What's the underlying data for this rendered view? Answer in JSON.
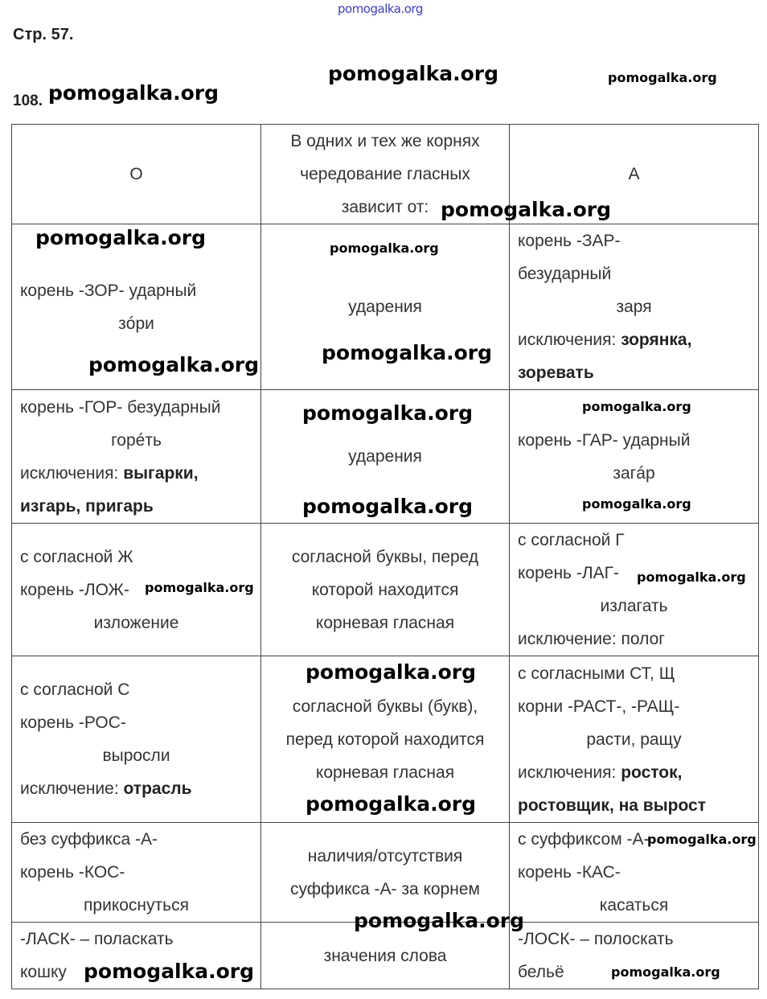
{
  "site_link": "pomogalka.org",
  "page_label": "Стр. 57.",
  "exercise_number": "108.",
  "watermark": "pomogalka.org",
  "table": {
    "rows": [
      {
        "cells": [
          {
            "lines": [
              {
                "text": "О",
                "align": "c"
              }
            ]
          },
          {
            "lines": [
              {
                "text": "В одних и тех же корнях",
                "align": "c"
              },
              {
                "text": "чередование гласных",
                "align": "c"
              },
              {
                "text": "зависит от:",
                "align": "c"
              }
            ]
          },
          {
            "lines": [
              {
                "text": "А",
                "align": "c"
              }
            ]
          }
        ]
      },
      {
        "cells": [
          {
            "lines": [
              {
                "text": "корень -ЗОР- ударный"
              },
              {
                "text": "зóри",
                "align": "c"
              }
            ]
          },
          {
            "lines": [
              {
                "text": "ударения",
                "align": "c"
              }
            ]
          },
          {
            "lines": [
              {
                "text": "корень -ЗАР-"
              },
              {
                "text": "безударный"
              },
              {
                "text": "заря",
                "align": "c"
              },
              {
                "text": "исключения: ",
                "bold": "зорянка,"
              },
              {
                "text": "",
                "bold": "зоревать"
              }
            ]
          }
        ]
      },
      {
        "cells": [
          {
            "lines": [
              {
                "text": "корень -ГОР- безударный"
              },
              {
                "text": "горéть",
                "align": "c"
              },
              {
                "text": "исключения: ",
                "bold": "выгарки,"
              },
              {
                "text": "",
                "bold": "изгарь, пригарь"
              }
            ]
          },
          {
            "lines": [
              {
                "text": "ударения",
                "align": "c"
              }
            ]
          },
          {
            "lines": [
              {
                "text": "корень -ГАР- ударный"
              },
              {
                "text": "загáр",
                "align": "c"
              }
            ]
          }
        ]
      },
      {
        "cells": [
          {
            "lines": [
              {
                "text": "с согласной Ж"
              },
              {
                "text": "корень -ЛОЖ-"
              },
              {
                "text": "изложение",
                "align": "c"
              }
            ]
          },
          {
            "lines": [
              {
                "text": "согласной буквы, перед",
                "align": "c"
              },
              {
                "text": "которой находится",
                "align": "c"
              },
              {
                "text": "корневая гласная",
                "align": "c"
              }
            ]
          },
          {
            "lines": [
              {
                "text": "с согласной Г"
              },
              {
                "text": "корень -ЛАГ-"
              },
              {
                "text": "излагать",
                "align": "c"
              },
              {
                "text": "исключение: полог"
              }
            ]
          }
        ]
      },
      {
        "cells": [
          {
            "lines": [
              {
                "text": "с согласной С"
              },
              {
                "text": "корень -РОС-"
              },
              {
                "text": "выросли",
                "align": "c"
              },
              {
                "text": "исключение: ",
                "bold": "отрасль"
              }
            ]
          },
          {
            "lines": [
              {
                "text": "согласной буквы (букв),",
                "align": "c"
              },
              {
                "text": "перед которой находится",
                "align": "c"
              },
              {
                "text": "корневая гласная",
                "align": "c"
              }
            ]
          },
          {
            "lines": [
              {
                "text": "с согласными СТ, Щ"
              },
              {
                "text": "корни -РАСТ-, -РАЩ-"
              },
              {
                "text": "расти, ращу",
                "align": "c"
              },
              {
                "text": "исключения: ",
                "bold": "росток,"
              },
              {
                "text": "",
                "bold": "ростовщик, на вырост"
              }
            ]
          }
        ]
      },
      {
        "cells": [
          {
            "lines": [
              {
                "text": "без суффикса -А-"
              },
              {
                "text": "корень -КОС-"
              },
              {
                "text": "прикоснуться",
                "align": "c"
              }
            ]
          },
          {
            "lines": [
              {
                "text": "наличия/отсутствия",
                "align": "c"
              },
              {
                "text": "суффикса -А- за корнем",
                "align": "c"
              }
            ]
          },
          {
            "lines": [
              {
                "text": "с суффиксом -А-"
              },
              {
                "text": "корень -КАС-"
              },
              {
                "text": "касаться",
                "align": "c"
              }
            ]
          }
        ]
      },
      {
        "cells": [
          {
            "lines": [
              {
                "text": "-ЛАСК- – поласкать"
              },
              {
                "text": "кошку"
              }
            ]
          },
          {
            "lines": [
              {
                "text": "значения слова",
                "align": "c"
              }
            ]
          },
          {
            "lines": [
              {
                "text": "-ЛОСК- – полоскать"
              },
              {
                "text": "бельё"
              }
            ]
          }
        ]
      }
    ]
  }
}
